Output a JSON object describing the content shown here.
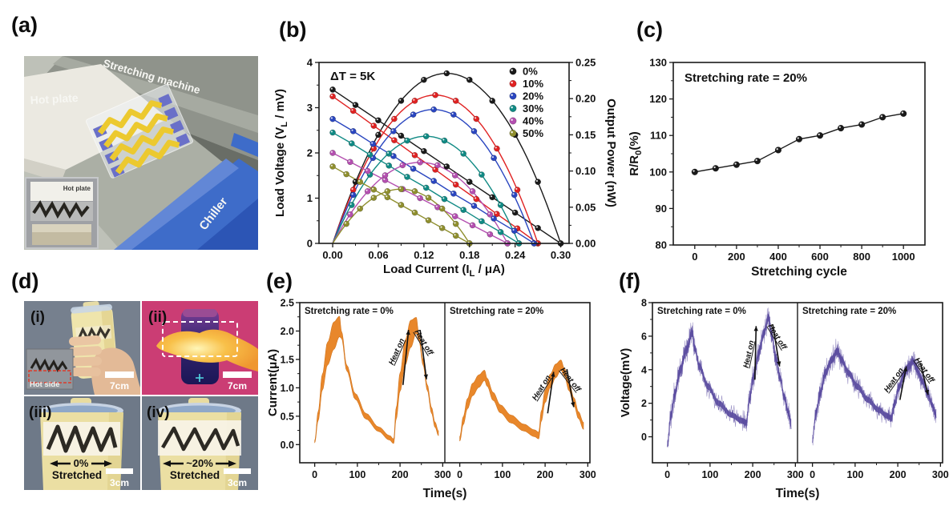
{
  "panel_labels": {
    "a": "(a)",
    "b": "(b)",
    "c": "(c)",
    "d": "(d)",
    "e": "(e)",
    "f": "(f)"
  },
  "panel_a": {
    "labels": {
      "hot_plate": "Hot plate",
      "machine": "Stretching machine",
      "chiller": "Chiller",
      "inset_title": "Hot plate"
    }
  },
  "panel_d": {
    "cells": [
      {
        "tag": "(i)",
        "scale_label": "7cm",
        "inset_label": "Hot side"
      },
      {
        "tag": "(ii)",
        "scale_label": "7cm"
      },
      {
        "tag": "(iii)",
        "scale_label": "3cm",
        "stretch_value": "0%",
        "stretch_word": "Stretched"
      },
      {
        "tag": "(iv)",
        "scale_label": "3cm",
        "stretch_value": "~20%",
        "stretch_word": "Stretched"
      }
    ]
  },
  "chart_data": [
    {
      "panel": "b",
      "type": "scatter",
      "annotation": "ΔT = 5K",
      "xlabel": "Load Current (I_L / μA)",
      "ylabel_left": "Load Voltage (V_L / mV)",
      "ylabel_right": "Output Power (nW)",
      "xlim": [
        -0.018,
        0.311
      ],
      "ylim_left": [
        0,
        4
      ],
      "ylim_right": [
        0,
        0.25
      ],
      "xticks": [
        0,
        0.06,
        0.12,
        0.18,
        0.24,
        0.3
      ],
      "yticks_left": [
        0,
        1,
        2,
        3,
        4
      ],
      "yticks_right": [
        0,
        0.05,
        0.1,
        0.15,
        0.2,
        0.25
      ],
      "legend_position": "top-right",
      "series": [
        {
          "name": "0%",
          "color": "#1a1a1a",
          "v0_mV": 3.4,
          "isc_uA": 0.3,
          "pmax_nW": 0.235,
          "current_uA": [
            0,
            0.03,
            0.06,
            0.09,
            0.12,
            0.15,
            0.18,
            0.21,
            0.24,
            0.27,
            0.3
          ],
          "voltage_mV": [
            3.4,
            3.06,
            2.72,
            2.38,
            2.04,
            1.7,
            1.36,
            1.02,
            0.68,
            0.34,
            0.0
          ],
          "power_nW": [
            0,
            0.085,
            0.15,
            0.197,
            0.226,
            0.235,
            0.226,
            0.197,
            0.15,
            0.085,
            0
          ]
        },
        {
          "name": "10%",
          "color": "#e02222",
          "v0_mV": 3.25,
          "isc_uA": 0.27,
          "pmax_nW": 0.205,
          "current_uA": [
            0,
            0.027,
            0.054,
            0.081,
            0.108,
            0.135,
            0.162,
            0.189,
            0.216,
            0.243,
            0.27
          ],
          "voltage_mV": [
            3.25,
            2.93,
            2.6,
            2.28,
            1.95,
            1.63,
            1.3,
            0.98,
            0.65,
            0.33,
            0.0
          ],
          "power_nW": [
            0,
            0.074,
            0.131,
            0.172,
            0.197,
            0.205,
            0.197,
            0.172,
            0.131,
            0.074,
            0
          ]
        },
        {
          "name": "20%",
          "color": "#2a46c0",
          "v0_mV": 2.75,
          "isc_uA": 0.265,
          "pmax_nW": 0.185,
          "current_uA": [
            0,
            0.027,
            0.053,
            0.08,
            0.106,
            0.133,
            0.159,
            0.186,
            0.212,
            0.239,
            0.265
          ],
          "voltage_mV": [
            2.75,
            2.48,
            2.2,
            1.93,
            1.65,
            1.38,
            1.1,
            0.83,
            0.55,
            0.28,
            0.0
          ],
          "power_nW": [
            0,
            0.067,
            0.118,
            0.155,
            0.178,
            0.185,
            0.178,
            0.155,
            0.118,
            0.067,
            0
          ]
        },
        {
          "name": "30%",
          "color": "#108a84",
          "v0_mV": 2.45,
          "isc_uA": 0.245,
          "pmax_nW": 0.148,
          "current_uA": [
            0,
            0.025,
            0.049,
            0.074,
            0.098,
            0.123,
            0.147,
            0.172,
            0.196,
            0.221,
            0.245
          ],
          "voltage_mV": [
            2.45,
            2.21,
            1.96,
            1.72,
            1.47,
            1.23,
            0.98,
            0.74,
            0.49,
            0.25,
            0.0
          ],
          "power_nW": [
            0,
            0.053,
            0.095,
            0.124,
            0.142,
            0.148,
            0.142,
            0.124,
            0.095,
            0.053,
            0
          ]
        },
        {
          "name": "40%",
          "color": "#b44fb0",
          "v0_mV": 2.0,
          "isc_uA": 0.23,
          "pmax_nW": 0.112,
          "current_uA": [
            0,
            0.023,
            0.046,
            0.069,
            0.092,
            0.115,
            0.138,
            0.161,
            0.184,
            0.207,
            0.23
          ],
          "voltage_mV": [
            2.0,
            1.8,
            1.6,
            1.4,
            1.2,
            1.0,
            0.8,
            0.6,
            0.4,
            0.2,
            0.0
          ],
          "power_nW": [
            0,
            0.04,
            0.072,
            0.094,
            0.108,
            0.112,
            0.108,
            0.094,
            0.072,
            0.04,
            0
          ]
        },
        {
          "name": "50%",
          "color": "#8f8f2e",
          "v0_mV": 1.7,
          "isc_uA": 0.18,
          "pmax_nW": 0.075,
          "current_uA": [
            0,
            0.018,
            0.036,
            0.054,
            0.072,
            0.09,
            0.108,
            0.126,
            0.144,
            0.162,
            0.18
          ],
          "voltage_mV": [
            1.7,
            1.53,
            1.36,
            1.19,
            1.02,
            0.85,
            0.68,
            0.51,
            0.34,
            0.17,
            0.0
          ],
          "power_nW": [
            0,
            0.027,
            0.048,
            0.063,
            0.072,
            0.075,
            0.072,
            0.063,
            0.048,
            0.027,
            0
          ]
        }
      ]
    },
    {
      "panel": "c",
      "type": "scatter-line",
      "annotation": "Stretching rate = 20%",
      "xlabel": "Stretching cycle",
      "ylabel": "R/R_0(%)",
      "xlim": [
        -103,
        1103
      ],
      "ylim": [
        80,
        130
      ],
      "xticks": [
        0,
        200,
        400,
        600,
        800,
        1000
      ],
      "yticks": [
        80,
        90,
        100,
        110,
        120,
        130
      ],
      "color": "#1a1a1a",
      "x": [
        0,
        100,
        200,
        300,
        400,
        500,
        600,
        700,
        800,
        900,
        1000
      ],
      "y": [
        100,
        101,
        102,
        103,
        106,
        109,
        110,
        112,
        113,
        115,
        116
      ]
    },
    {
      "panel": "e",
      "type": "area-band",
      "color": "#E8872B",
      "xlabel": "Time(s)",
      "ylabel": "Current(μA)",
      "xlim": [
        -35,
        305
      ],
      "ylim": [
        -0.32,
        2.5
      ],
      "xticks": [
        0,
        100,
        200,
        300
      ],
      "yticks": [
        0,
        0.5,
        1,
        1.5,
        2,
        2.5
      ],
      "ytick_decimals": 1,
      "subplots": [
        {
          "label": "Stretching rate = 0%",
          "keypoints": [
            [
              0,
              0.05,
              0.02
            ],
            [
              8,
              0.5,
              0.08
            ],
            [
              18,
              1.1,
              0.14
            ],
            [
              30,
              1.6,
              0.2
            ],
            [
              45,
              1.92,
              0.24
            ],
            [
              58,
              2.08,
              0.18
            ],
            [
              63,
              1.93,
              0.06
            ],
            [
              75,
              1.35,
              0.05
            ],
            [
              95,
              0.85,
              0.05
            ],
            [
              120,
              0.5,
              0.05
            ],
            [
              150,
              0.27,
              0.04
            ],
            [
              175,
              0.12,
              0.04
            ],
            [
              185,
              0.06,
              0.04
            ],
            [
              191,
              0.55,
              0.1
            ],
            [
              200,
              1.1,
              0.16
            ],
            [
              212,
              1.62,
              0.22
            ],
            [
              225,
              1.95,
              0.24
            ],
            [
              238,
              2.1,
              0.14
            ],
            [
              244,
              1.9,
              0.06
            ],
            [
              254,
              1.45,
              0.05
            ],
            [
              264,
              1.0,
              0.05
            ],
            [
              274,
              0.6,
              0.05
            ],
            [
              282,
              0.35,
              0.045
            ],
            [
              290,
              0.2,
              0.04
            ]
          ],
          "annotations": [
            {
              "text": "Heat on",
              "t": 197,
              "v": 1.62,
              "angle": -66,
              "arrow": [
                207,
                1.05,
                220,
                2.02
              ]
            },
            {
              "text": "Heat off",
              "t": 251,
              "v": 1.78,
              "angle": 58,
              "arrow": [
                247,
                2.02,
                262,
                1.15
              ]
            }
          ]
        },
        {
          "label": "Stretching rate = 20%",
          "keypoints": [
            [
              0,
              0.1,
              0.04
            ],
            [
              8,
              0.42,
              0.07
            ],
            [
              18,
              0.72,
              0.09
            ],
            [
              30,
              0.97,
              0.11
            ],
            [
              45,
              1.12,
              0.11
            ],
            [
              58,
              1.22,
              0.09
            ],
            [
              64,
              1.1,
              0.07
            ],
            [
              78,
              0.85,
              0.07
            ],
            [
              95,
              0.63,
              0.07
            ],
            [
              120,
              0.45,
              0.07
            ],
            [
              150,
              0.3,
              0.06
            ],
            [
              175,
              0.2,
              0.06
            ],
            [
              185,
              0.16,
              0.06
            ],
            [
              191,
              0.5,
              0.09
            ],
            [
              200,
              0.85,
              0.11
            ],
            [
              212,
              1.12,
              0.12
            ],
            [
              225,
              1.3,
              0.12
            ],
            [
              237,
              1.4,
              0.09
            ],
            [
              245,
              1.28,
              0.07
            ],
            [
              256,
              1.02,
              0.07
            ],
            [
              268,
              0.75,
              0.07
            ],
            [
              278,
              0.52,
              0.06
            ],
            [
              290,
              0.33,
              0.06
            ]
          ],
          "annotations": [
            {
              "text": "Heat on",
              "t": 196,
              "v": 0.98,
              "angle": -58,
              "arrow": [
                206,
                0.55,
                220,
                1.28
              ]
            },
            {
              "text": "Heat off",
              "t": 255,
              "v": 1.12,
              "angle": 52,
              "arrow": [
                251,
                1.33,
                267,
                0.66
              ]
            }
          ]
        }
      ]
    },
    {
      "panel": "f",
      "type": "noisy-line",
      "color": "#5B4CA0",
      "xlabel": "Time(s)",
      "ylabel": "Voltage(mV)",
      "xlim": [
        -35,
        305
      ],
      "ylim": [
        -1.55,
        8
      ],
      "xticks": [
        0,
        100,
        200,
        300
      ],
      "yticks": [
        0,
        2,
        4,
        6,
        8
      ],
      "ytick_decimals": 0,
      "subplots": [
        {
          "label": "Stretching rate = 0%",
          "keypoints": [
            [
              0,
              -0.5,
              0.35
            ],
            [
              8,
              1.2,
              0.5
            ],
            [
              18,
              2.6,
              0.55
            ],
            [
              30,
              4.0,
              0.6
            ],
            [
              45,
              5.2,
              0.6
            ],
            [
              58,
              6.2,
              0.5
            ],
            [
              64,
              5.3,
              0.45
            ],
            [
              75,
              4.2,
              0.45
            ],
            [
              95,
              3.0,
              0.45
            ],
            [
              120,
              2.0,
              0.42
            ],
            [
              150,
              1.3,
              0.4
            ],
            [
              175,
              0.95,
              0.4
            ],
            [
              185,
              0.85,
              0.4
            ],
            [
              192,
              2.2,
              0.5
            ],
            [
              202,
              3.6,
              0.55
            ],
            [
              214,
              5.0,
              0.6
            ],
            [
              226,
              6.2,
              0.55
            ],
            [
              237,
              7.1,
              0.5
            ],
            [
              244,
              6.1,
              0.5
            ],
            [
              254,
              4.7,
              0.5
            ],
            [
              264,
              3.5,
              0.45
            ],
            [
              274,
              2.4,
              0.42
            ],
            [
              283,
              1.5,
              0.4
            ],
            [
              290,
              0.8,
              0.35
            ]
          ],
          "annotations": [
            {
              "text": "Heat on",
              "t": 196,
              "v": 4.9,
              "angle": -78,
              "arrow": [
                205,
                3.4,
                208,
                6.6
              ]
            },
            {
              "text": "Heat off",
              "t": 253,
              "v": 5.9,
              "angle": 58,
              "arrow": [
                247,
                6.7,
                263,
                4.2
              ]
            }
          ]
        },
        {
          "label": "Stretching rate = 20%",
          "keypoints": [
            [
              0,
              -0.2,
              0.3
            ],
            [
              8,
              1.4,
              0.5
            ],
            [
              18,
              2.6,
              0.5
            ],
            [
              30,
              3.8,
              0.55
            ],
            [
              45,
              4.6,
              0.55
            ],
            [
              58,
              5.1,
              0.5
            ],
            [
              68,
              4.6,
              0.45
            ],
            [
              85,
              3.8,
              0.45
            ],
            [
              105,
              3.0,
              0.45
            ],
            [
              130,
              2.2,
              0.42
            ],
            [
              155,
              1.6,
              0.4
            ],
            [
              175,
              1.25,
              0.4
            ],
            [
              185,
              1.1,
              0.4
            ],
            [
              192,
              1.9,
              0.45
            ],
            [
              202,
              2.9,
              0.5
            ],
            [
              214,
              3.7,
              0.5
            ],
            [
              226,
              4.2,
              0.5
            ],
            [
              236,
              4.5,
              0.45
            ],
            [
              245,
              4.0,
              0.45
            ],
            [
              258,
              3.3,
              0.45
            ],
            [
              270,
              2.6,
              0.42
            ],
            [
              280,
              1.9,
              0.4
            ],
            [
              290,
              1.3,
              0.35
            ]
          ],
          "annotations": [
            {
              "text": "Heat on",
              "t": 195,
              "v": 3.3,
              "angle": -55,
              "arrow": [
                205,
                2.2,
                220,
                4.2
              ]
            },
            {
              "text": "Heat off",
              "t": 258,
              "v": 3.9,
              "angle": 55,
              "arrow": [
                253,
                4.4,
                271,
                2.5
              ]
            }
          ]
        }
      ]
    }
  ]
}
